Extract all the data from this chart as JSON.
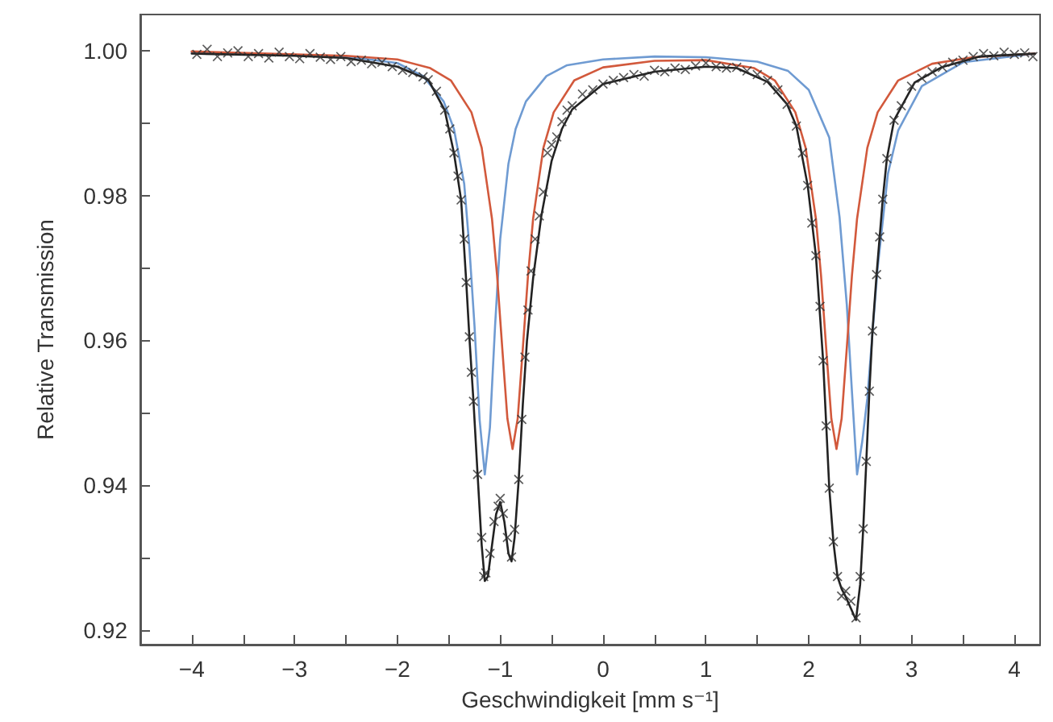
{
  "chart_data": {
    "type": "line",
    "xlabel": "Geschwindigkeit [mm s⁻¹]",
    "ylabel": "Relative Transmission",
    "xlim": [
      -4.5,
      4.25
    ],
    "ylim": [
      0.918,
      1.005
    ],
    "xticks": [
      {
        "value": -4,
        "label": "−4"
      },
      {
        "value": -3.5,
        "label": null
      },
      {
        "value": -3,
        "label": "−3"
      },
      {
        "value": -2.5,
        "label": null
      },
      {
        "value": -2,
        "label": "−2"
      },
      {
        "value": -1.5,
        "label": null
      },
      {
        "value": -1,
        "label": "−1"
      },
      {
        "value": -0.5,
        "label": null
      },
      {
        "value": 0,
        "label": "0"
      },
      {
        "value": 0.5,
        "label": null
      },
      {
        "value": 1,
        "label": "1"
      },
      {
        "value": 1.5,
        "label": null
      },
      {
        "value": 2,
        "label": "2"
      },
      {
        "value": 2.5,
        "label": null
      },
      {
        "value": 3,
        "label": "3"
      },
      {
        "value": 3.5,
        "label": null
      },
      {
        "value": 4,
        "label": "4"
      }
    ],
    "yticks": [
      {
        "value": 0.92,
        "label": "0.92"
      },
      {
        "value": 0.93,
        "label": null
      },
      {
        "value": 0.94,
        "label": "0.94"
      },
      {
        "value": 0.95,
        "label": null
      },
      {
        "value": 0.96,
        "label": "0.96"
      },
      {
        "value": 0.97,
        "label": null
      },
      {
        "value": 0.98,
        "label": "0.98"
      },
      {
        "value": 0.99,
        "label": null
      },
      {
        "value": 1.0,
        "label": "1.00"
      }
    ],
    "grid": false,
    "series": [
      {
        "color": "#6f9bd2",
        "x": [
          -4,
          -2.5,
          -2,
          -1.75,
          -1.55,
          -1.45,
          -1.35,
          -1.3,
          -1.25,
          -1.2,
          -1.15,
          -1.1,
          -1.05,
          -1.0,
          -0.92,
          -0.85,
          -0.75,
          -0.55,
          -0.35,
          0,
          0.5,
          1,
          1.5,
          1.8,
          2,
          2.2,
          2.3,
          2.37,
          2.42,
          2.47,
          2.52,
          2.57,
          2.62,
          2.67,
          2.77,
          2.87,
          3.1,
          3.5,
          4.2
        ],
        "values": [
          0.9998,
          0.9992,
          0.9983,
          0.9965,
          0.993,
          0.9892,
          0.9816,
          0.9729,
          0.962,
          0.949,
          0.9415,
          0.948,
          0.962,
          0.974,
          0.9844,
          0.9892,
          0.993,
          0.9965,
          0.998,
          0.9988,
          0.9992,
          0.9991,
          0.9985,
          0.9972,
          0.9946,
          0.988,
          0.977,
          0.965,
          0.953,
          0.9415,
          0.946,
          0.952,
          0.961,
          0.97,
          0.983,
          0.989,
          0.9951,
          0.9984,
          0.9996
        ]
      },
      {
        "color": "#d2593c",
        "x": [
          -4,
          -2.5,
          -2,
          -1.68,
          -1.48,
          -1.28,
          -1.18,
          -1.08,
          -1.03,
          -0.98,
          -0.93,
          -0.88,
          -0.83,
          -0.78,
          -0.73,
          -0.68,
          -0.58,
          -0.48,
          -0.28,
          0,
          0.5,
          1,
          1.47,
          1.67,
          1.87,
          1.97,
          2.07,
          2.12,
          2.17,
          2.22,
          2.27,
          2.32,
          2.37,
          2.42,
          2.47,
          2.57,
          2.67,
          2.87,
          3.2,
          3.6,
          4.2
        ],
        "values": [
          0.9999,
          0.9993,
          0.9988,
          0.9976,
          0.9959,
          0.9915,
          0.9866,
          0.9768,
          0.9689,
          0.9589,
          0.9492,
          0.945,
          0.9492,
          0.9589,
          0.9689,
          0.9768,
          0.9866,
          0.9915,
          0.9959,
          0.9977,
          0.9986,
          0.9987,
          0.9976,
          0.9959,
          0.9915,
          0.9866,
          0.9768,
          0.9689,
          0.9589,
          0.9492,
          0.945,
          0.9492,
          0.9589,
          0.9689,
          0.9768,
          0.9866,
          0.9915,
          0.9959,
          0.9982,
          0.9991,
          0.9996
        ]
      },
      {
        "color": "#222222",
        "x": [
          -4,
          -3,
          -2.5,
          -2,
          -1.7,
          -1.54,
          -1.45,
          -1.38,
          -1.33,
          -1.3,
          -1.26,
          -1.22,
          -1.18,
          -1.15,
          -1.12,
          -1.08,
          -1.04,
          -1.0,
          -0.96,
          -0.92,
          -0.89,
          -0.86,
          -0.82,
          -0.78,
          -0.74,
          -0.68,
          -0.6,
          -0.5,
          -0.4,
          -0.3,
          0,
          0.5,
          1,
          1.3,
          1.6,
          1.79,
          1.88,
          1.99,
          2.07,
          2.14,
          2.2,
          2.24,
          2.28,
          2.32,
          2.36,
          2.41,
          2.46,
          2.5,
          2.53,
          2.56,
          2.59,
          2.62,
          2.66,
          2.72,
          2.76,
          2.83,
          3.03,
          3.29,
          3.66,
          4.2
        ],
        "values": [
          0.9996,
          0.9993,
          0.999,
          0.9978,
          0.996,
          0.9918,
          0.9859,
          0.9794,
          0.968,
          0.9605,
          0.9516,
          0.9415,
          0.9317,
          0.9268,
          0.9274,
          0.9317,
          0.936,
          0.9377,
          0.935,
          0.9306,
          0.9295,
          0.9328,
          0.9408,
          0.9512,
          0.9599,
          0.9686,
          0.9772,
          0.9848,
          0.9892,
          0.9919,
          0.9954,
          0.9971,
          0.9978,
          0.9976,
          0.9957,
          0.9926,
          0.9896,
          0.9814,
          0.9717,
          0.9572,
          0.9396,
          0.9322,
          0.9274,
          0.9257,
          0.9246,
          0.923,
          0.9214,
          0.9263,
          0.934,
          0.9433,
          0.953,
          0.9613,
          0.9691,
          0.9795,
          0.9851,
          0.9904,
          0.9956,
          0.9977,
          0.9992,
          0.9996
        ]
      },
      {
        "type": "scatter",
        "marker": "cross",
        "color": "#333333",
        "x": [
          -3.95,
          -3.85,
          -3.75,
          -3.65,
          -3.55,
          -3.45,
          -3.35,
          -3.25,
          -3.15,
          -3.05,
          -2.95,
          -2.85,
          -2.75,
          -2.65,
          -2.55,
          -2.45,
          -2.35,
          -2.25,
          -2.15,
          -2.05,
          -1.95,
          -1.85,
          -1.75,
          -1.7,
          -1.62,
          -1.54,
          -1.49,
          -1.45,
          -1.41,
          -1.38,
          -1.35,
          -1.33,
          -1.3,
          -1.28,
          -1.26,
          -1.22,
          -1.18,
          -1.16,
          -1.14,
          -1.1,
          -1.06,
          -1.02,
          -1.0,
          -0.97,
          -0.93,
          -0.89,
          -0.86,
          -0.82,
          -0.79,
          -0.76,
          -0.73,
          -0.7,
          -0.66,
          -0.62,
          -0.58,
          -0.54,
          -0.5,
          -0.45,
          -0.4,
          -0.35,
          -0.3,
          -0.2,
          -0.1,
          0,
          0.1,
          0.2,
          0.3,
          0.4,
          0.5,
          0.6,
          0.7,
          0.8,
          0.9,
          1.0,
          1.1,
          1.2,
          1.3,
          1.4,
          1.5,
          1.6,
          1.7,
          1.79,
          1.88,
          1.94,
          1.99,
          2.03,
          2.07,
          2.11,
          2.14,
          2.17,
          2.2,
          2.24,
          2.28,
          2.32,
          2.36,
          2.41,
          2.46,
          2.5,
          2.53,
          2.56,
          2.59,
          2.62,
          2.66,
          2.69,
          2.72,
          2.76,
          2.83,
          2.9,
          3.0,
          3.1,
          3.2,
          3.3,
          3.4,
          3.5,
          3.6,
          3.7,
          3.8,
          3.9,
          4.0,
          4.1,
          4.18
        ],
        "values": [
          0.9995,
          1.0002,
          0.9992,
          0.9997,
          1.0,
          0.9992,
          0.9996,
          0.999,
          0.9998,
          0.9992,
          0.9989,
          0.9996,
          0.9991,
          0.9988,
          0.9992,
          0.9985,
          0.9987,
          0.9982,
          0.9984,
          0.9978,
          0.9973,
          0.997,
          0.9964,
          0.996,
          0.9944,
          0.9918,
          0.9892,
          0.9859,
          0.9827,
          0.9794,
          0.974,
          0.968,
          0.9605,
          0.9556,
          0.9516,
          0.9415,
          0.9328,
          0.9274,
          0.9279,
          0.9306,
          0.935,
          0.9371,
          0.9382,
          0.9361,
          0.9328,
          0.9301,
          0.9339,
          0.9408,
          0.9491,
          0.9577,
          0.9642,
          0.9696,
          0.974,
          0.9772,
          0.9805,
          0.9859,
          0.987,
          0.9881,
          0.9902,
          0.9918,
          0.9924,
          0.994,
          0.9946,
          0.9954,
          0.9959,
          0.9963,
          0.9967,
          0.9965,
          0.9973,
          0.9971,
          0.9976,
          0.9974,
          0.9979,
          0.9983,
          0.9978,
          0.9976,
          0.9977,
          0.9972,
          0.9967,
          0.9959,
          0.9946,
          0.9926,
          0.9896,
          0.9859,
          0.9814,
          0.9762,
          0.9717,
          0.9647,
          0.9572,
          0.9482,
          0.9396,
          0.9322,
          0.9274,
          0.9247,
          0.9254,
          0.924,
          0.9217,
          0.9274,
          0.934,
          0.9433,
          0.953,
          0.9613,
          0.9691,
          0.9743,
          0.9795,
          0.9851,
          0.9904,
          0.9924,
          0.9951,
          0.9962,
          0.9971,
          0.9977,
          0.9984,
          0.9987,
          0.9992,
          0.9996,
          0.9993,
          0.9998,
          0.9995,
          0.9997,
          0.9992
        ]
      }
    ]
  }
}
